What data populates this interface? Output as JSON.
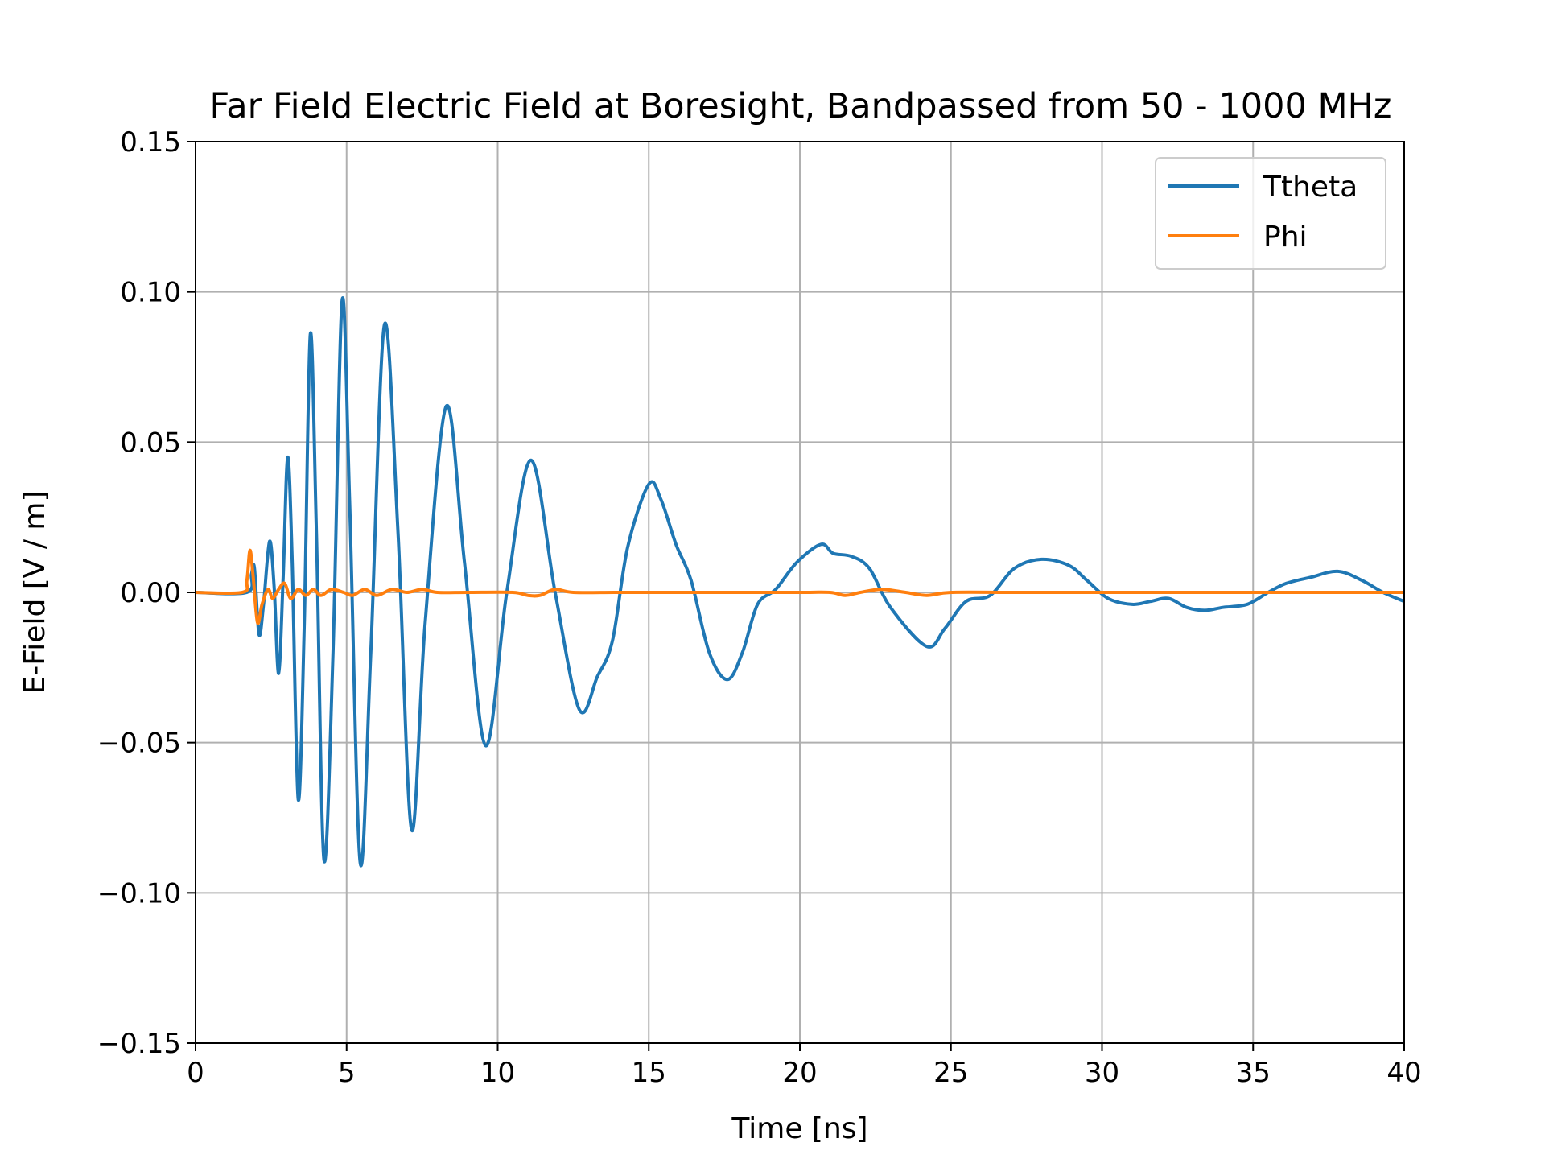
{
  "chart_data": {
    "type": "line",
    "title": "Far Field Electric Field at Boresight, Bandpassed from 50 - 1000 MHz",
    "xlabel": "Time [ns]",
    "ylabel": "E-Field [V / m]",
    "xlim": [
      0,
      40
    ],
    "ylim": [
      -0.15,
      0.15
    ],
    "xticks": [
      0,
      5,
      10,
      15,
      20,
      25,
      30,
      35,
      40
    ],
    "xtick_labels": [
      "0",
      "5",
      "10",
      "15",
      "20",
      "25",
      "30",
      "35",
      "40"
    ],
    "yticks": [
      -0.15,
      -0.1,
      -0.05,
      0.0,
      0.05,
      0.1,
      0.15
    ],
    "ytick_labels": [
      "−0.15",
      "−0.10",
      "−0.05",
      "0.00",
      "0.05",
      "0.10",
      "0.15"
    ],
    "grid": true,
    "legend_position": "top-right",
    "series": [
      {
        "name": "Ttheta",
        "color": "#1f77b4",
        "points": [
          [
            0,
            0
          ],
          [
            1.7,
            0
          ],
          [
            1.85,
            0.006
          ],
          [
            1.95,
            0.008
          ],
          [
            2.1,
            -0.014
          ],
          [
            2.25,
            -0.004
          ],
          [
            2.45,
            0.017
          ],
          [
            2.6,
            0.002
          ],
          [
            2.75,
            -0.027
          ],
          [
            2.9,
            0.005
          ],
          [
            3.05,
            0.045
          ],
          [
            3.2,
            0.01
          ],
          [
            3.4,
            -0.069
          ],
          [
            3.6,
            -0.01
          ],
          [
            3.8,
            0.086
          ],
          [
            4.0,
            0.02
          ],
          [
            4.25,
            -0.089
          ],
          [
            4.55,
            -0.02
          ],
          [
            4.85,
            0.097
          ],
          [
            5.1,
            0.03
          ],
          [
            5.45,
            -0.09
          ],
          [
            5.8,
            -0.02
          ],
          [
            6.25,
            0.089
          ],
          [
            6.7,
            0.02
          ],
          [
            7.15,
            -0.079
          ],
          [
            7.6,
            -0.01
          ],
          [
            8.3,
            0.062
          ],
          [
            8.9,
            0.01
          ],
          [
            9.6,
            -0.051
          ],
          [
            10.3,
            0.0
          ],
          [
            11.1,
            0.044
          ],
          [
            11.9,
            0.0
          ],
          [
            12.7,
            -0.039
          ],
          [
            13.3,
            -0.028
          ],
          [
            13.8,
            -0.016
          ],
          [
            14.3,
            0.015
          ],
          [
            15.0,
            0.036
          ],
          [
            15.4,
            0.031
          ],
          [
            15.9,
            0.016
          ],
          [
            16.4,
            0.004
          ],
          [
            17.0,
            -0.02
          ],
          [
            17.6,
            -0.029
          ],
          [
            18.1,
            -0.02
          ],
          [
            18.6,
            -0.004
          ],
          [
            19.2,
            0.001
          ],
          [
            19.9,
            0.01
          ],
          [
            20.7,
            0.016
          ],
          [
            21.1,
            0.013
          ],
          [
            21.7,
            0.012
          ],
          [
            22.3,
            0.008
          ],
          [
            23.0,
            -0.005
          ],
          [
            24.2,
            -0.018
          ],
          [
            24.8,
            -0.012
          ],
          [
            25.5,
            -0.003
          ],
          [
            26.3,
            -0.001
          ],
          [
            27.1,
            0.008
          ],
          [
            28.0,
            0.011
          ],
          [
            28.9,
            0.009
          ],
          [
            29.5,
            0.004
          ],
          [
            30.2,
            -0.002
          ],
          [
            31.0,
            -0.004
          ],
          [
            31.6,
            -0.003
          ],
          [
            32.2,
            -0.002
          ],
          [
            32.8,
            -0.005
          ],
          [
            33.4,
            -0.006
          ],
          [
            34.0,
            -0.005
          ],
          [
            34.8,
            -0.004
          ],
          [
            35.5,
            0.0
          ],
          [
            36.1,
            0.003
          ],
          [
            36.9,
            0.005
          ],
          [
            37.8,
            0.007
          ],
          [
            38.6,
            0.004
          ],
          [
            39.3,
            0.0
          ],
          [
            40.0,
            -0.003
          ]
        ]
      },
      {
        "name": "Phi",
        "color": "#ff7f0e",
        "points": [
          [
            0,
            0
          ],
          [
            1.55,
            0
          ],
          [
            1.7,
            0.004
          ],
          [
            1.8,
            0.014
          ],
          [
            1.9,
            0.006
          ],
          [
            2.05,
            -0.01
          ],
          [
            2.2,
            -0.004
          ],
          [
            2.4,
            0.001
          ],
          [
            2.55,
            -0.002
          ],
          [
            2.75,
            0.001
          ],
          [
            2.95,
            0.003
          ],
          [
            3.15,
            -0.002
          ],
          [
            3.4,
            0.001
          ],
          [
            3.65,
            -0.001
          ],
          [
            3.9,
            0.001
          ],
          [
            4.15,
            -0.001
          ],
          [
            4.5,
            0.001
          ],
          [
            4.9,
            0.0
          ],
          [
            5.2,
            -0.001
          ],
          [
            5.6,
            0.001
          ],
          [
            6.0,
            -0.001
          ],
          [
            6.5,
            0.001
          ],
          [
            7.0,
            0.0
          ],
          [
            7.5,
            0.001
          ],
          [
            8.0,
            0.0
          ],
          [
            9.0,
            0.0
          ],
          [
            10.5,
            0.0
          ],
          [
            11.0,
            -0.001
          ],
          [
            11.4,
            -0.001
          ],
          [
            11.9,
            0.001
          ],
          [
            12.5,
            0.0
          ],
          [
            14.0,
            0.0
          ],
          [
            16.0,
            0.0
          ],
          [
            18.0,
            0.0
          ],
          [
            20.0,
            0.0
          ],
          [
            21.0,
            0.0
          ],
          [
            21.5,
            -0.001
          ],
          [
            22.0,
            0.0
          ],
          [
            22.7,
            0.001
          ],
          [
            23.5,
            0.0
          ],
          [
            24.2,
            -0.001
          ],
          [
            25.0,
            0.0
          ],
          [
            27.0,
            0.0
          ],
          [
            29.0,
            0.0
          ],
          [
            31.0,
            0.0
          ],
          [
            33.0,
            0.0
          ],
          [
            35.0,
            0.0
          ],
          [
            37.0,
            0.0
          ],
          [
            38.0,
            0.0
          ],
          [
            40.0,
            0.0
          ]
        ]
      }
    ]
  }
}
